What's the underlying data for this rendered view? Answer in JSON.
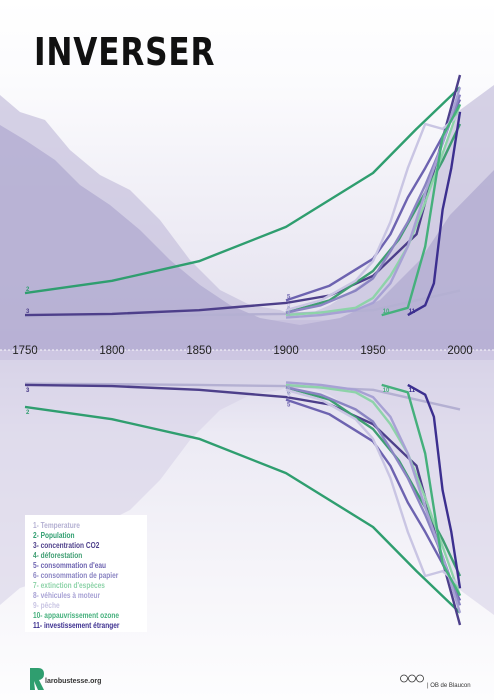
{
  "title": "INVERSER",
  "chart_data": {
    "type": "line",
    "x_ticks": [
      1750,
      1800,
      1850,
      1900,
      1950,
      2000
    ],
    "xlim": [
      1750,
      2000
    ],
    "mirrored": true,
    "series": [
      {
        "id": "1",
        "name": "1- Temperature",
        "color": "#b4b0d2",
        "x": [
          1750,
          1800,
          1850,
          1900,
          1950,
          2000
        ],
        "y": [
          0.015,
          0.017,
          0.02,
          0.025,
          0.04,
          0.12
        ]
      },
      {
        "id": "2",
        "name": "2- Population",
        "color": "#2f9e6f",
        "x": [
          1750,
          1800,
          1850,
          1900,
          1950,
          1975,
          2000
        ],
        "y": [
          0.11,
          0.16,
          0.24,
          0.38,
          0.6,
          0.78,
          0.95
        ]
      },
      {
        "id": "3",
        "name": "3- concentration CO2",
        "color": "#4d3f8a",
        "x": [
          1750,
          1800,
          1850,
          1900,
          1925,
          1950,
          1975,
          2000
        ],
        "y": [
          0.02,
          0.025,
          0.04,
          0.07,
          0.1,
          0.18,
          0.35,
          1.0
        ]
      },
      {
        "id": "4",
        "name": "4- déforestation",
        "color": "#3f9e72",
        "x": [
          1900,
          1925,
          1950,
          1965,
          1980,
          1990,
          2000
        ],
        "y": [
          0.03,
          0.08,
          0.2,
          0.33,
          0.52,
          0.65,
          0.8
        ]
      },
      {
        "id": "5",
        "name": "5- consommation d'eau",
        "color": "#6d63b0",
        "x": [
          1900,
          1925,
          1950,
          1960,
          1970,
          1980,
          1990,
          2000
        ],
        "y": [
          0.08,
          0.14,
          0.25,
          0.35,
          0.5,
          0.62,
          0.75,
          0.9
        ]
      },
      {
        "id": "6",
        "name": "6- consommation de papier",
        "color": "#8a84c2",
        "x": [
          1900,
          1920,
          1940,
          1950,
          1960,
          1970,
          1980,
          1990,
          2000
        ],
        "y": [
          0.03,
          0.06,
          0.12,
          0.17,
          0.28,
          0.4,
          0.55,
          0.72,
          0.92
        ]
      },
      {
        "id": "7",
        "name": "7- extinction d'espèces",
        "color": "#8ed3a9",
        "x": [
          1900,
          1920,
          1940,
          1950,
          1960,
          1970,
          1980,
          1990,
          2000
        ],
        "y": [
          0.02,
          0.03,
          0.05,
          0.09,
          0.18,
          0.3,
          0.48,
          0.68,
          0.88
        ]
      },
      {
        "id": "8",
        "name": "8- véhicules à moteur",
        "color": "#a7a1d4",
        "x": [
          1900,
          1920,
          1940,
          1950,
          1960,
          1970,
          1980,
          1990,
          2000
        ],
        "y": [
          0.01,
          0.02,
          0.04,
          0.07,
          0.15,
          0.3,
          0.52,
          0.72,
          0.95
        ]
      },
      {
        "id": "9",
        "name": "9- pêche",
        "color": "#c9c5e3",
        "x": [
          1900,
          1920,
          1940,
          1950,
          1960,
          1970,
          1980,
          1990,
          2000
        ],
        "y": [
          0.04,
          0.08,
          0.16,
          0.24,
          0.4,
          0.62,
          0.8,
          0.78,
          0.84
        ]
      },
      {
        "id": "10",
        "name": "10- appauvrissement ozone",
        "color": "#45b07c",
        "x": [
          1955,
          1970,
          1980,
          1990,
          2000
        ],
        "y": [
          0.02,
          0.05,
          0.3,
          0.75,
          0.88
        ]
      },
      {
        "id": "11",
        "name": "11- investissement étranger",
        "color": "#3c2f8f",
        "x": [
          1970,
          1980,
          1985,
          1990,
          1995,
          2000
        ],
        "y": [
          0.02,
          0.06,
          0.15,
          0.45,
          0.62,
          0.85
        ]
      }
    ]
  },
  "legend": {
    "items": [
      {
        "label": "1- Temperature",
        "color": "#b4b0d2"
      },
      {
        "label": "2- Population",
        "color": "#2f9e6f"
      },
      {
        "label": "3- concentration CO2",
        "color": "#4d3f8a"
      },
      {
        "label": "4- déforestation",
        "color": "#3f9e72"
      },
      {
        "label": "5- consommation d'eau",
        "color": "#6d63b0"
      },
      {
        "label": "6- consommation de papier",
        "color": "#8a84c2"
      },
      {
        "label": "7- extinction d'espèces",
        "color": "#8ed3a9"
      },
      {
        "label": "8- véhicules à moteur",
        "color": "#a7a1d4"
      },
      {
        "label": "9- pêche",
        "color": "#c9c5e3"
      },
      {
        "label": "10- appauvrissement ozone",
        "color": "#45b07c"
      },
      {
        "label": "11- investissement étranger",
        "color": "#3c2f8f"
      }
    ]
  },
  "footer": {
    "url": "larobustesse.org",
    "credit": "| OB de Blaucon"
  }
}
